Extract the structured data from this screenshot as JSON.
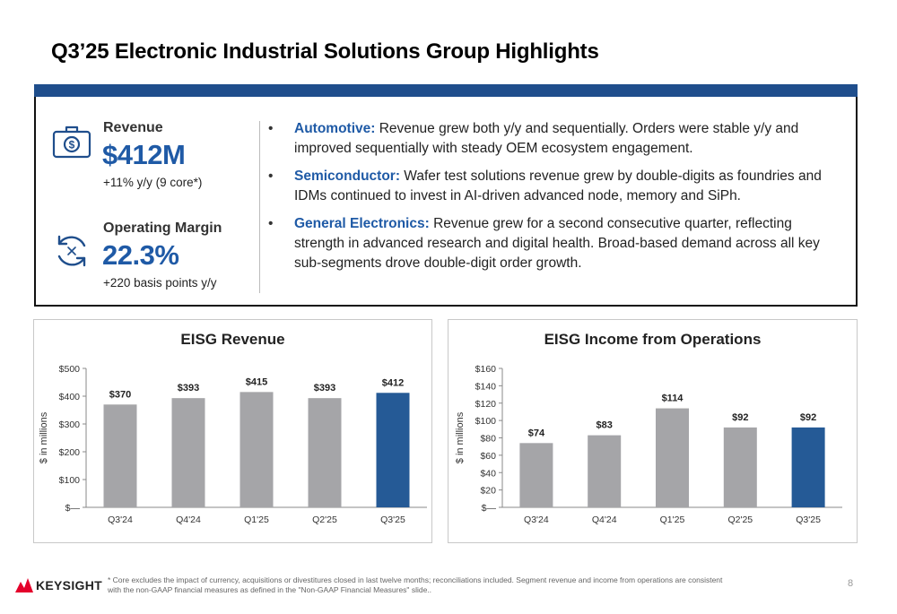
{
  "title": "Q3’25 Electronic Industrial Solutions Group Highlights",
  "kpis": {
    "revenue": {
      "label": "Revenue",
      "value": "$412M",
      "sub": "+11% y/y (9 core*)",
      "icon": "money-bag-icon"
    },
    "margin": {
      "label": "Operating Margin",
      "value": "22.3%",
      "sub": "+220 basis points y/y",
      "icon": "cycle-arrows-icon"
    }
  },
  "bullets": [
    {
      "label": "Automotive:",
      "text": " Revenue grew both y/y and sequentially. Orders were stable y/y and improved sequentially with steady OEM ecosystem engagement."
    },
    {
      "label": "Semiconductor:",
      "text": " Wafer test solutions revenue grew by double-digits as foundries and IDMs continued to invest in AI-driven advanced node, memory and SiPh."
    },
    {
      "label": "General Electronics:",
      "text": " Revenue grew for a second consecutive quarter, reflecting strength in advanced research and digital health. Broad-based demand across all key sub-segments drove double-digit order growth."
    }
  ],
  "chart_data": [
    {
      "type": "bar",
      "title": "EISG Revenue",
      "ylabel": "$ in millions",
      "categories": [
        "Q3'24",
        "Q4'24",
        "Q1'25",
        "Q2'25",
        "Q3'25"
      ],
      "values": [
        370,
        393,
        415,
        393,
        412
      ],
      "data_labels": [
        "$370",
        "$393",
        "$415",
        "$393",
        "$412"
      ],
      "ylim": [
        0,
        500
      ],
      "yticks": [
        0,
        100,
        200,
        300,
        400,
        500
      ],
      "ytick_labels": [
        "$—",
        "$100",
        "$200",
        "$300",
        "$400",
        "$500"
      ],
      "grid": false,
      "colors": {
        "default": "#a5a5a8",
        "highlight": "#255a96"
      },
      "highlight_index": 4
    },
    {
      "type": "bar",
      "title": "EISG Income from Operations",
      "ylabel": "$ in millions",
      "categories": [
        "Q3'24",
        "Q4'24",
        "Q1'25",
        "Q2'25",
        "Q3'25"
      ],
      "values": [
        74,
        83,
        114,
        92,
        92
      ],
      "data_labels": [
        "$74",
        "$83",
        "$114",
        "$92",
        "$92"
      ],
      "ylim": [
        0,
        160
      ],
      "yticks": [
        0,
        20,
        40,
        60,
        80,
        100,
        120,
        140,
        160
      ],
      "ytick_labels": [
        "$—",
        "$20",
        "$40",
        "$60",
        "$80",
        "$100",
        "$120",
        "$140",
        "$160"
      ],
      "grid": false,
      "colors": {
        "default": "#a5a5a8",
        "highlight": "#255a96"
      },
      "highlight_index": 4
    }
  ],
  "footer": {
    "logo_text": "KEYSIGHT",
    "footnote": "* Core excludes the impact of currency, acquisitions or divestitures closed in last twelve months; reconciliations included. Segment revenue and income from operations are consistent with the non-GAAP financial measures as defined in the \"Non-GAAP Financial Measures\" slide..",
    "page_number": "8"
  },
  "colors": {
    "accent": "#1f5aa6",
    "band": "#1f4e8c",
    "logo_red": "#e4002b"
  }
}
